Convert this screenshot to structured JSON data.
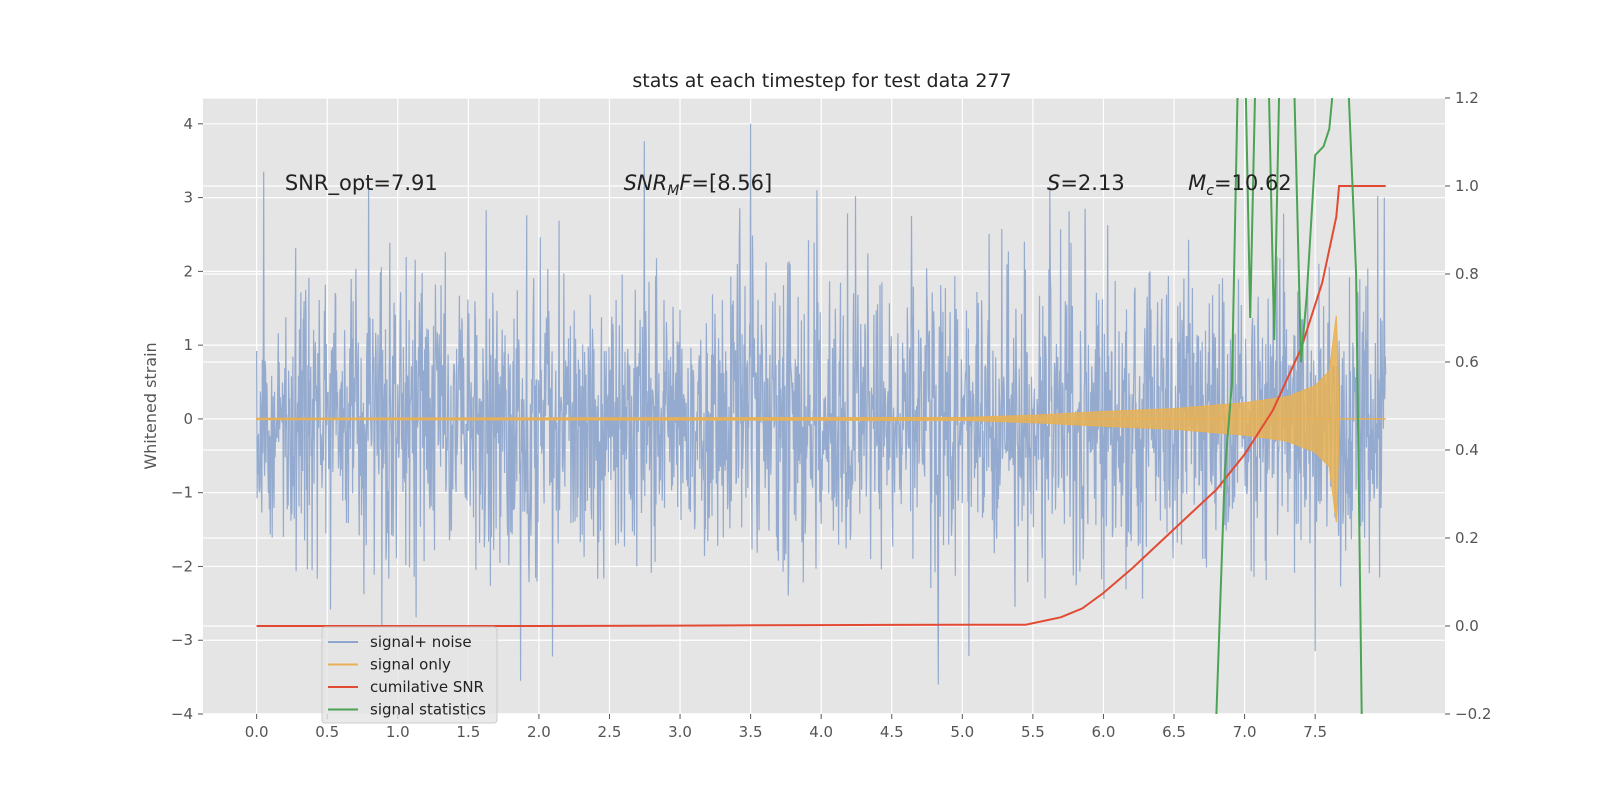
{
  "chart_data": {
    "type": "line",
    "title": "stats at each timestep for test data 277",
    "ylabel": "Whitened strain",
    "xlabel": "",
    "xlim": [
      -0.38,
      8.42
    ],
    "ylim": [
      -4,
      4.35
    ],
    "ylim_right": [
      -0.2,
      1.2
    ],
    "grid": true,
    "legend_placement": "lower-left",
    "x_ticks": [
      "0.0",
      "0.5",
      "1.0",
      "1.5",
      "2.0",
      "2.5",
      "3.0",
      "3.5",
      "4.0",
      "4.5",
      "5.0",
      "5.5",
      "6.0",
      "6.5",
      "7.0",
      "7.5"
    ],
    "x_tick_values": [
      0.0,
      0.5,
      1.0,
      1.5,
      2.0,
      2.5,
      3.0,
      3.5,
      4.0,
      4.5,
      5.0,
      5.5,
      6.0,
      6.5,
      7.0,
      7.5
    ],
    "y_ticks": [
      "−4",
      "−3",
      "−2",
      "−1",
      "0",
      "1",
      "2",
      "3",
      "4"
    ],
    "y_tick_values": [
      -4,
      -3,
      -2,
      -1,
      0,
      1,
      2,
      3,
      4
    ],
    "y2_ticks": [
      "−0.2",
      "0.0",
      "0.2",
      "0.4",
      "0.6",
      "0.8",
      "1.0",
      "1.2"
    ],
    "y2_tick_values": [
      -0.2,
      0.0,
      0.2,
      0.4,
      0.6,
      0.8,
      1.0,
      1.2
    ],
    "annotations": [
      {
        "text": "SNR_opt=7.91",
        "x": 0.2,
        "y": 3.2
      },
      {
        "text": "SNR_MF=[8.56]",
        "x": 2.6,
        "y": 3.2
      },
      {
        "text": "S=2.13",
        "x": 5.6,
        "y": 3.2
      },
      {
        "text": "M_c=10.62",
        "x": 6.6,
        "y": 3.2
      }
    ],
    "series": [
      {
        "name": "signal+ noise",
        "color": "#8fa6cc",
        "axis": "left",
        "x_range": [
          0.0,
          8.0
        ],
        "typical_amplitude": 1.0,
        "peaks": [
          [
            0.05,
            3.35
          ],
          [
            3.5,
            4.0
          ],
          [
            3.97,
            3.1
          ],
          [
            4.83,
            -3.6
          ],
          [
            1.87,
            -3.55
          ],
          [
            7.5,
            -3.15
          ],
          [
            5.62,
            3.15
          ],
          [
            7.99,
            3.0
          ]
        ]
      },
      {
        "name": "signal only",
        "color": "#e8b155",
        "axis": "left",
        "x": [
          0.0,
          5.0,
          5.5,
          6.0,
          6.5,
          7.0,
          7.3,
          7.5,
          7.6,
          7.65,
          7.66,
          7.67,
          8.0
        ],
        "envelope": [
          0.01,
          0.02,
          0.05,
          0.1,
          0.14,
          0.22,
          0.3,
          0.45,
          0.65,
          1.4,
          0.9,
          0.0,
          0.0
        ]
      },
      {
        "name": "cumilative SNR",
        "color": "#e24a33",
        "axis": "right",
        "x": [
          0.0,
          1.0,
          2.0,
          3.0,
          4.0,
          5.0,
          5.45,
          5.7,
          5.85,
          6.0,
          6.2,
          6.4,
          6.6,
          6.8,
          7.0,
          7.2,
          7.4,
          7.55,
          7.65,
          7.67,
          7.8,
          8.0
        ],
        "values": [
          0.0,
          0.0,
          0.0,
          0.001,
          0.002,
          0.003,
          0.003,
          0.02,
          0.04,
          0.075,
          0.13,
          0.19,
          0.25,
          0.31,
          0.39,
          0.49,
          0.63,
          0.78,
          0.93,
          1.0,
          1.0,
          1.0
        ]
      },
      {
        "name": "signal statistics",
        "color": "#4ca355",
        "axis": "right",
        "x": [
          6.8,
          6.86,
          6.91,
          6.95,
          7.0,
          7.04,
          7.08,
          7.12,
          7.17,
          7.21,
          7.25,
          7.3,
          7.35,
          7.4,
          7.44,
          7.5,
          7.56,
          7.6,
          7.65,
          7.72,
          7.79,
          7.83
        ],
        "values": [
          -0.2,
          0.35,
          0.55,
          1.2,
          1.35,
          0.7,
          1.3,
          1.35,
          1.25,
          0.65,
          1.3,
          1.35,
          1.25,
          0.6,
          0.75,
          1.07,
          1.09,
          1.13,
          1.3,
          1.35,
          0.8,
          -0.2
        ]
      }
    ]
  }
}
